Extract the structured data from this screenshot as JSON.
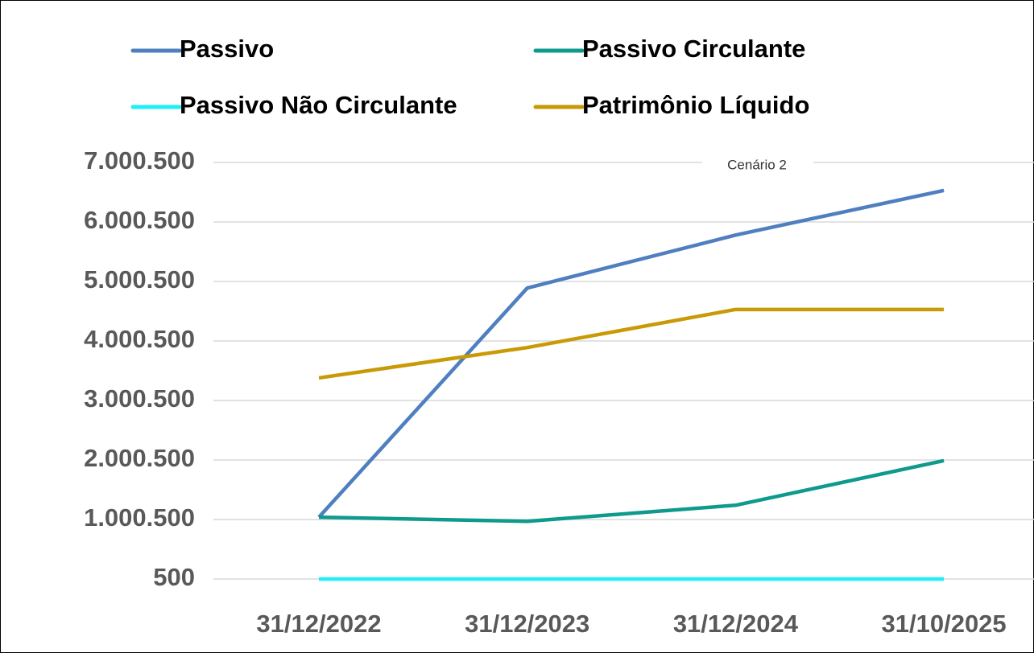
{
  "chart_data": {
    "type": "line",
    "title": "Cenário 2",
    "categories": [
      "31/12/2022",
      "31/12/2023",
      "31/12/2024",
      "31/10/2025"
    ],
    "series": [
      {
        "name": "Passivo",
        "color": "#4f7fbf",
        "values": [
          1040000,
          4890000,
          5780000,
          6530000
        ]
      },
      {
        "name": "Passivo Circulante",
        "color": "#0f9a8e",
        "values": [
          1040000,
          970000,
          1240000,
          1990000
        ]
      },
      {
        "name": "Passivo Não Circulante",
        "color": "#1ff0f7",
        "values": [
          500,
          500,
          500,
          500
        ]
      },
      {
        "name": "Patrimônio Líquido",
        "color": "#c99a06",
        "values": [
          3380000,
          3890000,
          4530000,
          4530000
        ]
      }
    ],
    "ylim": [
      500,
      7000500
    ],
    "yticks": [
      {
        "value": 500,
        "label": "500"
      },
      {
        "value": 1000500,
        "label": "1.000.500"
      },
      {
        "value": 2000500,
        "label": "2.000.500"
      },
      {
        "value": 3000500,
        "label": "3.000.500"
      },
      {
        "value": 4000500,
        "label": "4.000.500"
      },
      {
        "value": 5000500,
        "label": "5.000.500"
      },
      {
        "value": 6000500,
        "label": "6.000.500"
      },
      {
        "value": 7000500,
        "label": "7.000.500"
      }
    ],
    "grid": true
  }
}
